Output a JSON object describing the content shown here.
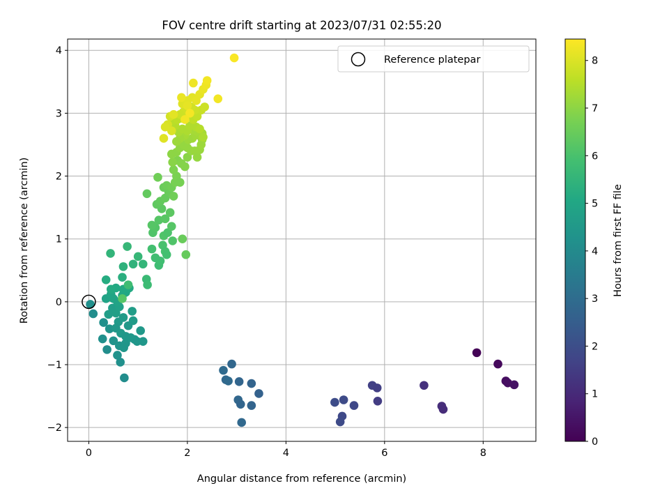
{
  "chart_data": {
    "type": "scatter",
    "title": "FOV centre drift starting at 2023/07/31 02:55:20",
    "xlabel": "Angular distance from reference (arcmin)",
    "ylabel": "Rotation from reference (arcmin)",
    "xlim": [
      -0.43,
      9.07
    ],
    "ylim": [
      -2.22,
      4.18
    ],
    "xticks": [
      0,
      2,
      4,
      6,
      8
    ],
    "yticks": [
      -2,
      -1,
      0,
      1,
      2,
      3,
      4
    ],
    "xtick_labels": [
      "0",
      "2",
      "4",
      "6",
      "8"
    ],
    "ytick_labels": [
      "−2",
      "−1",
      "0",
      "1",
      "2",
      "3",
      "4"
    ],
    "grid": true,
    "legend": {
      "placement": "top-right",
      "entries": [
        "Reference platepar"
      ]
    },
    "colorbar": {
      "label": "Hours from first FF file",
      "colormap": "viridis",
      "range": [
        0,
        8.45
      ],
      "ticks": [
        0,
        1,
        2,
        3,
        4,
        5,
        6,
        7,
        8
      ],
      "tick_labels": [
        "0",
        "1",
        "2",
        "3",
        "4",
        "5",
        "6",
        "7",
        "8"
      ]
    },
    "reference_point": {
      "x": 0,
      "y": 0,
      "label": "Reference platepar"
    },
    "series": [
      {
        "values": [
          {
            "x": 7.87,
            "y": -0.81,
            "c": 0.05
          },
          {
            "x": 8.3,
            "y": -0.99,
            "c": 0.2
          },
          {
            "x": 8.46,
            "y": -1.26,
            "c": 0.3
          },
          {
            "x": 8.5,
            "y": -1.29,
            "c": 0.35
          },
          {
            "x": 8.63,
            "y": -1.32,
            "c": 0.4
          },
          {
            "x": 6.8,
            "y": -1.33,
            "c": 1.2
          },
          {
            "x": 7.16,
            "y": -1.66,
            "c": 1.1
          },
          {
            "x": 7.19,
            "y": -1.71,
            "c": 1.05
          },
          {
            "x": 5.75,
            "y": -1.33,
            "c": 1.6
          },
          {
            "x": 5.85,
            "y": -1.37,
            "c": 1.55
          },
          {
            "x": 5.86,
            "y": -1.58,
            "c": 1.5
          },
          {
            "x": 5.38,
            "y": -1.65,
            "c": 1.8
          },
          {
            "x": 5.17,
            "y": -1.56,
            "c": 1.9
          },
          {
            "x": 4.99,
            "y": -1.6,
            "c": 1.95
          },
          {
            "x": 5.14,
            "y": -1.82,
            "c": 1.85
          },
          {
            "x": 5.1,
            "y": -1.91,
            "c": 1.9
          },
          {
            "x": 2.9,
            "y": -0.99,
            "c": 2.8
          },
          {
            "x": 2.73,
            "y": -1.09,
            "c": 2.9
          },
          {
            "x": 2.78,
            "y": -1.24,
            "c": 2.85
          },
          {
            "x": 2.83,
            "y": -1.26,
            "c": 2.9
          },
          {
            "x": 3.05,
            "y": -1.27,
            "c": 2.75
          },
          {
            "x": 3.3,
            "y": -1.3,
            "c": 2.7
          },
          {
            "x": 3.45,
            "y": -1.46,
            "c": 2.65
          },
          {
            "x": 3.03,
            "y": -1.56,
            "c": 2.8
          },
          {
            "x": 3.08,
            "y": -1.63,
            "c": 2.75
          },
          {
            "x": 3.3,
            "y": -1.65,
            "c": 2.7
          },
          {
            "x": 3.1,
            "y": -1.92,
            "c": 2.85
          },
          {
            "x": 0.03,
            "y": -0.04,
            "c": 4.2
          },
          {
            "x": 0.09,
            "y": -0.19,
            "c": 4.1
          },
          {
            "x": 0.3,
            "y": -0.33,
            "c": 4.2
          },
          {
            "x": 0.42,
            "y": -0.43,
            "c": 4.3
          },
          {
            "x": 0.28,
            "y": -0.59,
            "c": 4.2
          },
          {
            "x": 0.37,
            "y": -0.76,
            "c": 4.1
          },
          {
            "x": 0.58,
            "y": -0.85,
            "c": 4.25
          },
          {
            "x": 0.64,
            "y": -0.96,
            "c": 4.2
          },
          {
            "x": 0.72,
            "y": -1.21,
            "c": 4.1
          },
          {
            "x": 0.5,
            "y": -0.62,
            "c": 4.3
          },
          {
            "x": 0.62,
            "y": -0.7,
            "c": 4.35
          },
          {
            "x": 0.71,
            "y": -0.73,
            "c": 4.4
          },
          {
            "x": 0.75,
            "y": -0.66,
            "c": 4.4
          },
          {
            "x": 0.85,
            "y": -0.57,
            "c": 4.5
          },
          {
            "x": 0.93,
            "y": -0.6,
            "c": 4.45
          },
          {
            "x": 0.98,
            "y": -0.63,
            "c": 4.4
          },
          {
            "x": 1.05,
            "y": -0.46,
            "c": 4.5
          },
          {
            "x": 1.1,
            "y": -0.63,
            "c": 4.45
          },
          {
            "x": 0.9,
            "y": -0.3,
            "c": 4.6
          },
          {
            "x": 0.88,
            "y": -0.15,
            "c": 4.65
          },
          {
            "x": 0.8,
            "y": -0.38,
            "c": 4.5
          },
          {
            "x": 0.7,
            "y": -0.25,
            "c": 4.6
          },
          {
            "x": 0.6,
            "y": -0.32,
            "c": 4.55
          },
          {
            "x": 0.55,
            "y": -0.42,
            "c": 4.5
          },
          {
            "x": 0.65,
            "y": -0.5,
            "c": 4.55
          },
          {
            "x": 0.75,
            "y": -0.55,
            "c": 4.5
          },
          {
            "x": 0.48,
            "y": -0.1,
            "c": 4.7
          },
          {
            "x": 0.55,
            "y": -0.18,
            "c": 4.75
          },
          {
            "x": 0.62,
            "y": -0.08,
            "c": 4.8
          },
          {
            "x": 0.4,
            "y": -0.2,
            "c": 4.7
          },
          {
            "x": 0.35,
            "y": 0.05,
            "c": 4.9
          },
          {
            "x": 0.45,
            "y": 0.12,
            "c": 5.0
          },
          {
            "x": 0.5,
            "y": 0.05,
            "c": 4.95
          },
          {
            "x": 0.58,
            "y": 0.0,
            "c": 4.9
          },
          {
            "x": 0.68,
            "y": 0.1,
            "c": 5.0
          },
          {
            "x": 0.75,
            "y": 0.15,
            "c": 5.05
          },
          {
            "x": 0.82,
            "y": 0.22,
            "c": 5.1
          },
          {
            "x": 0.55,
            "y": 0.22,
            "c": 5.1
          },
          {
            "x": 0.45,
            "y": 0.2,
            "c": 5.15
          },
          {
            "x": 0.7,
            "y": 0.2,
            "c": 5.1
          },
          {
            "x": 0.35,
            "y": 0.35,
            "c": 5.2
          },
          {
            "x": 0.68,
            "y": 0.39,
            "c": 5.3
          },
          {
            "x": 0.7,
            "y": 0.56,
            "c": 5.4
          },
          {
            "x": 0.44,
            "y": 0.77,
            "c": 5.5
          },
          {
            "x": 0.78,
            "y": 0.88,
            "c": 5.6
          },
          {
            "x": 0.9,
            "y": 0.6,
            "c": 5.45
          },
          {
            "x": 1.0,
            "y": 0.72,
            "c": 5.6
          },
          {
            "x": 1.1,
            "y": 0.6,
            "c": 5.55
          },
          {
            "x": 1.17,
            "y": 0.36,
            "c": 5.7
          },
          {
            "x": 1.19,
            "y": 0.27,
            "c": 5.75
          },
          {
            "x": 0.8,
            "y": 0.27,
            "c": 5.8
          },
          {
            "x": 0.68,
            "y": 0.05,
            "c": 6.2
          },
          {
            "x": 1.28,
            "y": 0.84,
            "c": 5.9
          },
          {
            "x": 1.35,
            "y": 0.7,
            "c": 5.85
          },
          {
            "x": 1.42,
            "y": 0.58,
            "c": 5.8
          },
          {
            "x": 1.45,
            "y": 0.65,
            "c": 5.85
          },
          {
            "x": 1.5,
            "y": 0.9,
            "c": 6.0
          },
          {
            "x": 1.55,
            "y": 0.8,
            "c": 5.95
          },
          {
            "x": 1.58,
            "y": 0.75,
            "c": 5.9
          },
          {
            "x": 1.52,
            "y": 1.05,
            "c": 6.1
          },
          {
            "x": 1.6,
            "y": 1.1,
            "c": 6.05
          },
          {
            "x": 1.3,
            "y": 1.1,
            "c": 6.1
          },
          {
            "x": 1.35,
            "y": 1.18,
            "c": 6.15
          },
          {
            "x": 1.28,
            "y": 1.22,
            "c": 6.2
          },
          {
            "x": 1.42,
            "y": 1.3,
            "c": 6.2
          },
          {
            "x": 1.55,
            "y": 1.32,
            "c": 6.25
          },
          {
            "x": 1.65,
            "y": 1.42,
            "c": 6.3
          },
          {
            "x": 1.68,
            "y": 1.2,
            "c": 6.2
          },
          {
            "x": 1.7,
            "y": 0.97,
            "c": 6.1
          },
          {
            "x": 1.48,
            "y": 1.48,
            "c": 6.3
          },
          {
            "x": 1.38,
            "y": 1.55,
            "c": 6.35
          },
          {
            "x": 1.45,
            "y": 1.6,
            "c": 6.4
          },
          {
            "x": 1.55,
            "y": 1.65,
            "c": 6.45
          },
          {
            "x": 1.62,
            "y": 1.75,
            "c": 6.5
          },
          {
            "x": 1.18,
            "y": 1.72,
            "c": 6.4
          },
          {
            "x": 1.52,
            "y": 1.82,
            "c": 6.5
          },
          {
            "x": 1.58,
            "y": 1.85,
            "c": 6.55
          },
          {
            "x": 1.68,
            "y": 1.82,
            "c": 6.6
          },
          {
            "x": 1.72,
            "y": 1.68,
            "c": 6.6
          },
          {
            "x": 1.4,
            "y": 1.98,
            "c": 6.6
          },
          {
            "x": 1.9,
            "y": 1.0,
            "c": 6.5
          },
          {
            "x": 1.97,
            "y": 0.75,
            "c": 6.45
          },
          {
            "x": 1.75,
            "y": 1.9,
            "c": 6.7
          },
          {
            "x": 1.78,
            "y": 2.0,
            "c": 6.75
          },
          {
            "x": 1.85,
            "y": 1.9,
            "c": 6.7
          },
          {
            "x": 1.72,
            "y": 2.1,
            "c": 6.8
          },
          {
            "x": 1.8,
            "y": 2.25,
            "c": 6.85
          },
          {
            "x": 1.88,
            "y": 2.2,
            "c": 6.9
          },
          {
            "x": 1.95,
            "y": 2.15,
            "c": 6.9
          },
          {
            "x": 2.0,
            "y": 2.3,
            "c": 6.95
          },
          {
            "x": 1.7,
            "y": 2.22,
            "c": 6.95
          },
          {
            "x": 1.68,
            "y": 2.35,
            "c": 7.0
          },
          {
            "x": 1.78,
            "y": 2.38,
            "c": 7.0
          },
          {
            "x": 1.85,
            "y": 2.45,
            "c": 7.05
          },
          {
            "x": 1.92,
            "y": 2.5,
            "c": 7.1
          },
          {
            "x": 2.0,
            "y": 2.45,
            "c": 7.1
          },
          {
            "x": 2.08,
            "y": 2.4,
            "c": 7.1
          },
          {
            "x": 2.15,
            "y": 2.4,
            "c": 7.15
          },
          {
            "x": 2.2,
            "y": 2.3,
            "c": 7.1
          },
          {
            "x": 2.25,
            "y": 2.42,
            "c": 7.15
          },
          {
            "x": 2.28,
            "y": 2.5,
            "c": 7.2
          },
          {
            "x": 2.3,
            "y": 2.58,
            "c": 7.2
          },
          {
            "x": 2.22,
            "y": 2.65,
            "c": 7.25
          },
          {
            "x": 2.3,
            "y": 2.68,
            "c": 7.3
          },
          {
            "x": 2.15,
            "y": 2.7,
            "c": 7.3
          },
          {
            "x": 2.1,
            "y": 2.6,
            "c": 7.25
          },
          {
            "x": 2.02,
            "y": 2.58,
            "c": 7.2
          },
          {
            "x": 1.95,
            "y": 2.65,
            "c": 7.3
          },
          {
            "x": 1.85,
            "y": 2.6,
            "c": 7.25
          },
          {
            "x": 1.78,
            "y": 2.55,
            "c": 7.2
          },
          {
            "x": 1.82,
            "y": 2.7,
            "c": 7.35
          },
          {
            "x": 1.9,
            "y": 2.75,
            "c": 7.4
          },
          {
            "x": 2.0,
            "y": 2.72,
            "c": 7.4
          },
          {
            "x": 2.05,
            "y": 2.8,
            "c": 7.45
          },
          {
            "x": 2.18,
            "y": 2.78,
            "c": 7.45
          },
          {
            "x": 2.25,
            "y": 2.75,
            "c": 7.5
          },
          {
            "x": 2.32,
            "y": 2.62,
            "c": 7.4
          },
          {
            "x": 1.75,
            "y": 2.8,
            "c": 7.5
          },
          {
            "x": 1.7,
            "y": 2.88,
            "c": 7.55
          },
          {
            "x": 1.8,
            "y": 2.9,
            "c": 7.6
          },
          {
            "x": 1.88,
            "y": 2.92,
            "c": 7.6
          },
          {
            "x": 1.95,
            "y": 2.95,
            "c": 7.65
          },
          {
            "x": 2.05,
            "y": 2.98,
            "c": 7.7
          },
          {
            "x": 2.12,
            "y": 2.9,
            "c": 7.65
          },
          {
            "x": 2.2,
            "y": 2.95,
            "c": 7.7
          },
          {
            "x": 2.28,
            "y": 3.05,
            "c": 7.75
          },
          {
            "x": 2.35,
            "y": 3.1,
            "c": 7.8
          },
          {
            "x": 2.15,
            "y": 3.05,
            "c": 7.8
          },
          {
            "x": 2.08,
            "y": 3.1,
            "c": 7.85
          },
          {
            "x": 2.0,
            "y": 3.0,
            "c": 7.8
          },
          {
            "x": 1.92,
            "y": 3.02,
            "c": 7.85
          },
          {
            "x": 1.85,
            "y": 2.98,
            "c": 7.8
          },
          {
            "x": 1.65,
            "y": 2.95,
            "c": 7.9
          },
          {
            "x": 1.6,
            "y": 2.82,
            "c": 7.95
          },
          {
            "x": 1.55,
            "y": 2.78,
            "c": 8.0
          },
          {
            "x": 1.52,
            "y": 2.6,
            "c": 8.05
          },
          {
            "x": 1.68,
            "y": 2.72,
            "c": 8.0
          },
          {
            "x": 1.72,
            "y": 2.98,
            "c": 8.1
          },
          {
            "x": 1.9,
            "y": 3.15,
            "c": 8.05
          },
          {
            "x": 2.0,
            "y": 3.2,
            "c": 8.1
          },
          {
            "x": 2.1,
            "y": 3.25,
            "c": 8.1
          },
          {
            "x": 2.18,
            "y": 3.2,
            "c": 8.15
          },
          {
            "x": 2.25,
            "y": 3.3,
            "c": 8.15
          },
          {
            "x": 2.32,
            "y": 3.38,
            "c": 8.2
          },
          {
            "x": 2.38,
            "y": 3.45,
            "c": 8.25
          },
          {
            "x": 2.4,
            "y": 3.52,
            "c": 8.3
          },
          {
            "x": 2.12,
            "y": 3.48,
            "c": 8.25
          },
          {
            "x": 1.88,
            "y": 3.25,
            "c": 8.2
          },
          {
            "x": 2.0,
            "y": 3.12,
            "c": 8.15
          },
          {
            "x": 2.62,
            "y": 3.23,
            "c": 8.3
          },
          {
            "x": 2.95,
            "y": 3.88,
            "c": 8.4
          },
          {
            "x": 2.05,
            "y": 3.0,
            "c": 8.35
          },
          {
            "x": 1.95,
            "y": 2.9,
            "c": 8.3
          }
        ]
      }
    ]
  }
}
